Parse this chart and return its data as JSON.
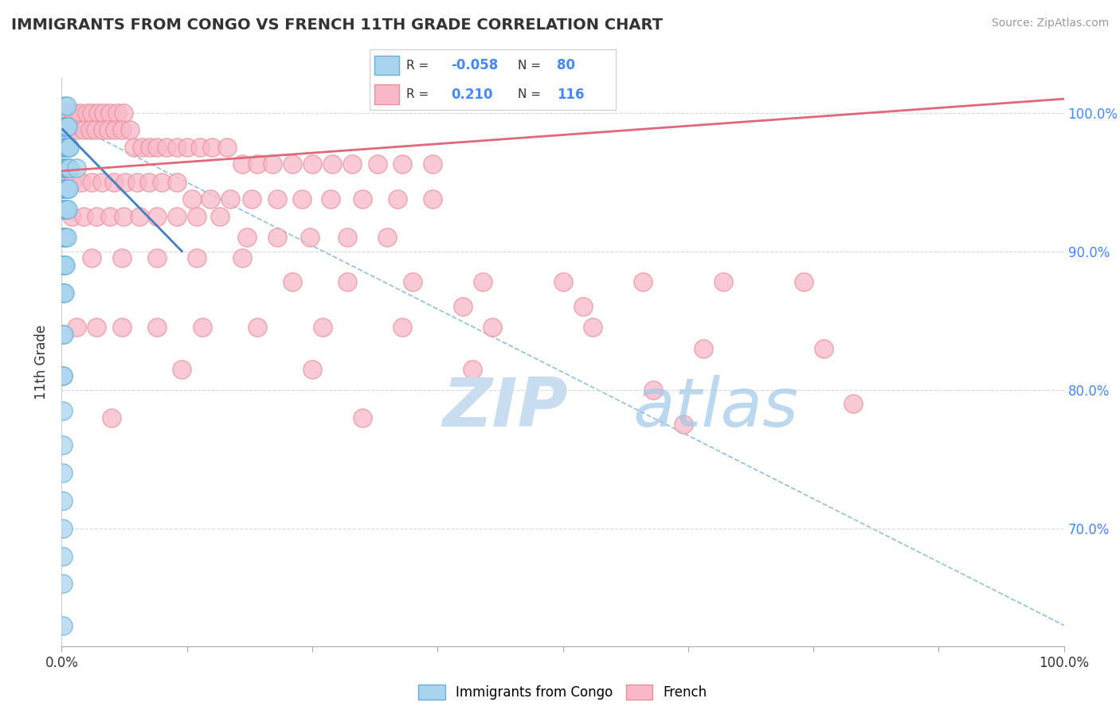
{
  "title": "IMMIGRANTS FROM CONGO VS FRENCH 11TH GRADE CORRELATION CHART",
  "source_text": "Source: ZipAtlas.com",
  "ylabel": "11th Grade",
  "xlim": [
    0.0,
    1.0
  ],
  "ylim": [
    0.615,
    1.025
  ],
  "right_y_ticks": [
    0.7,
    0.8,
    0.9,
    1.0
  ],
  "right_y_tick_labels": [
    "70.0%",
    "80.0%",
    "90.0%",
    "100.0%"
  ],
  "legend_blue_label": "Immigrants from Congo",
  "legend_pink_label": "French",
  "blue_R": "-0.058",
  "blue_N": "80",
  "pink_R": "0.210",
  "pink_N": "116",
  "blue_color": "#a8d4f0",
  "pink_color": "#f8b8c8",
  "blue_edge": "#6aafd4",
  "pink_edge": "#e89098",
  "blue_line_color": "#4080c0",
  "pink_line_color": "#e06878",
  "dashed_line_color": "#90c0e0",
  "background_color": "#ffffff",
  "grid_color": "#d8d8d8",
  "blue_scatter_x": [
    0.003,
    0.005,
    0.001,
    0.002,
    0.003,
    0.004,
    0.005,
    0.006,
    0.001,
    0.002,
    0.003,
    0.004,
    0.005,
    0.006,
    0.007,
    0.008,
    0.001,
    0.002,
    0.003,
    0.003,
    0.004,
    0.005,
    0.006,
    0.007,
    0.008,
    0.001,
    0.001,
    0.002,
    0.003,
    0.004,
    0.005,
    0.006,
    0.007,
    0.001,
    0.002,
    0.003,
    0.004,
    0.005,
    0.006,
    0.001,
    0.002,
    0.003,
    0.004,
    0.005,
    0.001,
    0.002,
    0.003,
    0.004,
    0.001,
    0.002,
    0.003,
    0.001,
    0.002,
    0.001,
    0.001,
    0.001,
    0.001,
    0.001,
    0.001,
    0.001,
    0.001,
    0.001,
    0.015,
    0.001
  ],
  "blue_scatter_y": [
    1.005,
    1.005,
    0.99,
    0.99,
    0.99,
    0.99,
    0.99,
    0.99,
    0.975,
    0.975,
    0.975,
    0.975,
    0.975,
    0.975,
    0.975,
    0.975,
    0.96,
    0.96,
    0.96,
    0.96,
    0.96,
    0.96,
    0.96,
    0.96,
    0.96,
    0.945,
    0.945,
    0.945,
    0.945,
    0.945,
    0.945,
    0.945,
    0.945,
    0.93,
    0.93,
    0.93,
    0.93,
    0.93,
    0.93,
    0.91,
    0.91,
    0.91,
    0.91,
    0.91,
    0.89,
    0.89,
    0.89,
    0.89,
    0.87,
    0.87,
    0.87,
    0.84,
    0.84,
    0.81,
    0.81,
    0.785,
    0.76,
    0.74,
    0.72,
    0.7,
    0.68,
    0.66,
    0.96,
    0.63
  ],
  "pink_scatter_x": [
    0.005,
    0.012,
    0.018,
    0.025,
    0.03,
    0.036,
    0.042,
    0.048,
    0.055,
    0.062,
    0.008,
    0.015,
    0.022,
    0.028,
    0.034,
    0.041,
    0.047,
    0.053,
    0.06,
    0.068,
    0.072,
    0.08,
    0.088,
    0.095,
    0.105,
    0.115,
    0.125,
    0.138,
    0.15,
    0.165,
    0.18,
    0.195,
    0.21,
    0.23,
    0.25,
    0.27,
    0.29,
    0.315,
    0.34,
    0.37,
    0.01,
    0.02,
    0.03,
    0.04,
    0.052,
    0.063,
    0.075,
    0.087,
    0.1,
    0.115,
    0.13,
    0.148,
    0.168,
    0.19,
    0.215,
    0.24,
    0.268,
    0.3,
    0.335,
    0.37,
    0.01,
    0.022,
    0.035,
    0.048,
    0.062,
    0.078,
    0.095,
    0.115,
    0.135,
    0.158,
    0.185,
    0.215,
    0.248,
    0.285,
    0.325,
    0.03,
    0.06,
    0.095,
    0.135,
    0.18,
    0.23,
    0.285,
    0.35,
    0.42,
    0.5,
    0.58,
    0.66,
    0.74,
    0.4,
    0.52,
    0.015,
    0.035,
    0.06,
    0.095,
    0.14,
    0.195,
    0.26,
    0.34,
    0.43,
    0.53,
    0.64,
    0.76,
    0.12,
    0.25,
    0.41,
    0.59,
    0.79,
    0.05,
    0.3,
    0.62
  ],
  "pink_scatter_y": [
    1.0,
    1.0,
    1.0,
    1.0,
    1.0,
    1.0,
    1.0,
    1.0,
    1.0,
    1.0,
    0.988,
    0.988,
    0.988,
    0.988,
    0.988,
    0.988,
    0.988,
    0.988,
    0.988,
    0.988,
    0.975,
    0.975,
    0.975,
    0.975,
    0.975,
    0.975,
    0.975,
    0.975,
    0.975,
    0.975,
    0.963,
    0.963,
    0.963,
    0.963,
    0.963,
    0.963,
    0.963,
    0.963,
    0.963,
    0.963,
    0.95,
    0.95,
    0.95,
    0.95,
    0.95,
    0.95,
    0.95,
    0.95,
    0.95,
    0.95,
    0.938,
    0.938,
    0.938,
    0.938,
    0.938,
    0.938,
    0.938,
    0.938,
    0.938,
    0.938,
    0.925,
    0.925,
    0.925,
    0.925,
    0.925,
    0.925,
    0.925,
    0.925,
    0.925,
    0.925,
    0.91,
    0.91,
    0.91,
    0.91,
    0.91,
    0.895,
    0.895,
    0.895,
    0.895,
    0.895,
    0.878,
    0.878,
    0.878,
    0.878,
    0.878,
    0.878,
    0.878,
    0.878,
    0.86,
    0.86,
    0.845,
    0.845,
    0.845,
    0.845,
    0.845,
    0.845,
    0.845,
    0.845,
    0.845,
    0.845,
    0.83,
    0.83,
    0.815,
    0.815,
    0.815,
    0.8,
    0.79,
    0.78,
    0.78,
    0.775
  ],
  "blue_trend_x": [
    0.001,
    0.12
  ],
  "blue_trend_y": [
    0.988,
    0.9
  ],
  "pink_trend_x": [
    0.0,
    1.0
  ],
  "pink_trend_y": [
    0.958,
    1.01
  ],
  "dashed_trend_x": [
    0.001,
    1.0
  ],
  "dashed_trend_y": [
    0.995,
    0.63
  ],
  "title_fontsize": 14,
  "axis_tick_fontsize": 12,
  "right_tick_color": "#4488ff",
  "xtick_color": "#333333"
}
